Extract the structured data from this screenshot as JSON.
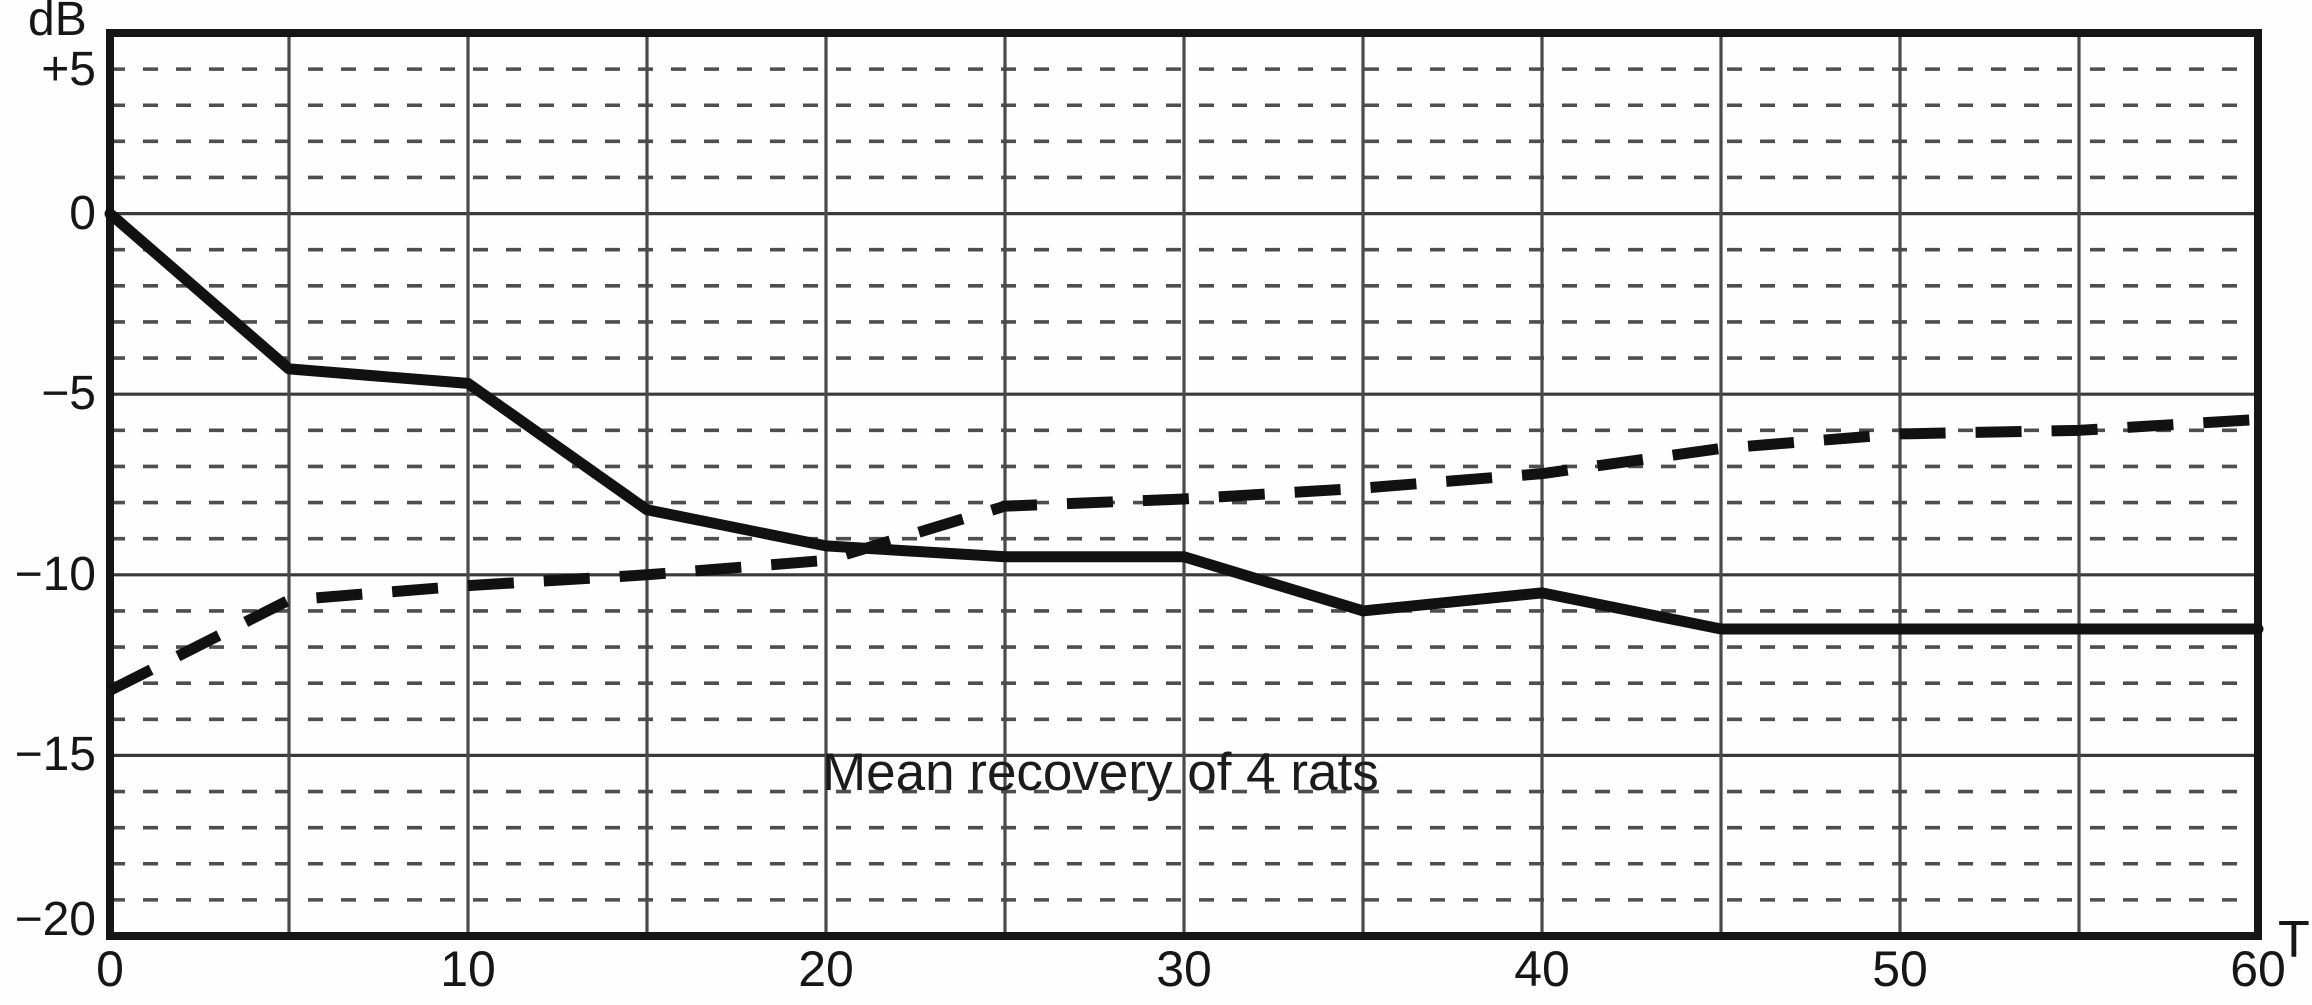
{
  "chart_data": {
    "type": "line",
    "title": "",
    "annotation": "Mean recovery of 4 rats",
    "xlabel": "T",
    "ylabel": "dB",
    "xlim": [
      0,
      60
    ],
    "ylim": [
      -20,
      5
    ],
    "xticks": [
      0,
      10,
      20,
      30,
      40,
      50,
      60
    ],
    "yticks": [
      {
        "value": 5,
        "label": "+5"
      },
      {
        "value": 0,
        "label": "0"
      },
      {
        "value": -5,
        "label": "−5"
      },
      {
        "value": -10,
        "label": "−10"
      },
      {
        "value": -15,
        "label": "−15"
      },
      {
        "value": -20,
        "label": "−20"
      }
    ],
    "x_major_grid_step": 5,
    "y_major_grid_step": 5,
    "y_minor_grid_step": 1,
    "grid": {
      "major_color": "#3a3a3a",
      "vertical_color": "#4a4a4a",
      "minor_color": "#4e4e4e",
      "minor_dashed": true
    },
    "frame_color": "#161616",
    "x": [
      0,
      5,
      10,
      15,
      20,
      25,
      30,
      35,
      40,
      45,
      50,
      55,
      60
    ],
    "series": [
      {
        "name": "solid curve",
        "line_style": "solid",
        "color": "#111111",
        "values": [
          0,
          -4.3,
          -4.7,
          -8.2,
          -9.2,
          -9.5,
          -9.5,
          -11,
          -10.5,
          -11.5,
          -11.5,
          -11.5,
          -11.5
        ]
      },
      {
        "name": "dashed curve",
        "line_style": "dashed",
        "color": "#111111",
        "values": [
          -13.2,
          -10.7,
          -10.3,
          -10,
          -9.6,
          -8.1,
          -7.9,
          -7.6,
          -7.2,
          -6.5,
          -6.1,
          -6,
          -5.7
        ]
      }
    ]
  }
}
